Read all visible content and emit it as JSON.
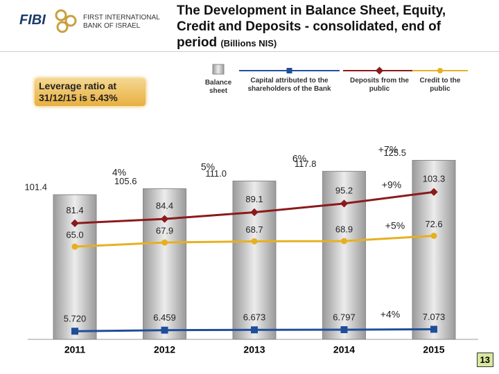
{
  "logo": {
    "mark": "FIBI",
    "bank_name": "FIRST INTERNATIONAL BANK OF ISRAEL"
  },
  "leverage_note": "Leverage ratio at 31/12/15 is 5.43%",
  "page_number": "13",
  "chart_data": {
    "type": "bar",
    "title": "The Development  in Balance Sheet, Equity, Credit and Deposits - consolidated, end of period",
    "subtitle": "(Billions NIS)",
    "categories": [
      "2011",
      "2012",
      "2013",
      "2014",
      "2015"
    ],
    "series": [
      {
        "name": "Balance sheet",
        "type": "bar",
        "color": "#c4c4c4",
        "values": [
          101.4,
          105.6,
          111.0,
          117.8,
          125.5
        ],
        "value_labels": [
          "101.4",
          "105.6",
          "111.0",
          "117.8",
          "125.5"
        ]
      },
      {
        "name": "Capital attributed to the shareholders of the Bank",
        "type": "line",
        "color": "#1f4e9a",
        "values": [
          5.72,
          6.459,
          6.673,
          6.797,
          7.073
        ],
        "value_labels": [
          "5.720",
          "6.459",
          "6.673",
          "6.797",
          "7.073"
        ]
      },
      {
        "name": "Deposits from the public",
        "type": "line",
        "color": "#8b1a1a",
        "values": [
          81.4,
          84.4,
          89.1,
          95.2,
          103.3
        ]
      },
      {
        "name": "Credit to the public",
        "type": "line",
        "color": "#e8b020",
        "values": [
          65.0,
          67.9,
          68.7,
          68.9,
          72.6
        ],
        "value_labels": [
          "65.0",
          "67.9",
          "68.7",
          "68.9",
          "72.6"
        ]
      }
    ],
    "annotations": [
      "4%",
      "5%",
      "6%",
      "+7%",
      "+9%",
      "+5%",
      "+4%"
    ]
  }
}
